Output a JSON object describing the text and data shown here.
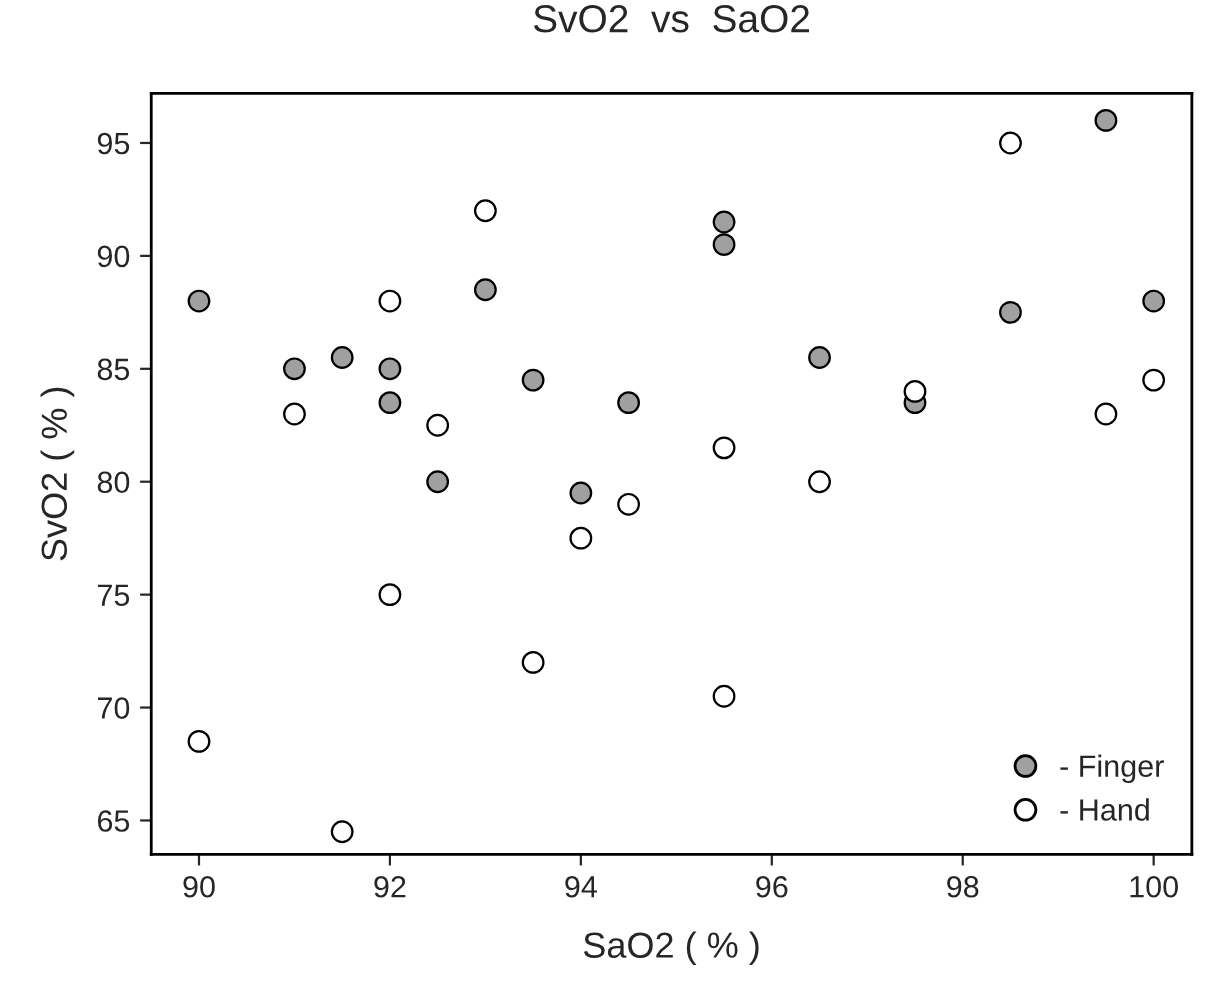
{
  "chart_data": {
    "type": "scatter",
    "title": "SvO2  vs  SaO2",
    "xlabel": "SaO2 ( % )",
    "ylabel": "SvO2 ( % )",
    "xlim": [
      89.5,
      100.4
    ],
    "ylim": [
      63.5,
      97.2
    ],
    "xticks": [
      90,
      92,
      94,
      96,
      98,
      100
    ],
    "yticks": [
      65,
      70,
      75,
      80,
      85,
      90,
      95
    ],
    "grid": false,
    "legend": "bottom right",
    "marker": "circle",
    "series": [
      {
        "name": "- Finger",
        "color": "#a0a0a0",
        "x": [
          90,
          91,
          91.5,
          92,
          92,
          92.5,
          93,
          93.5,
          94,
          94.5,
          95.5,
          95.5,
          96.5,
          97.5,
          98.5,
          99.5,
          100
        ],
        "values": [
          88,
          85,
          85.5,
          85,
          83.5,
          80,
          88.5,
          84.5,
          79.5,
          83.5,
          91.5,
          90.5,
          85.5,
          83.5,
          87.5,
          96,
          88
        ]
      },
      {
        "name": "- Hand",
        "color": "#ffffff",
        "x": [
          90,
          91,
          91.5,
          92,
          92,
          92.5,
          93,
          93.5,
          94,
          94.5,
          95.5,
          95.5,
          96.5,
          97.5,
          98.5,
          99.5,
          100
        ],
        "values": [
          68.5,
          83,
          64.5,
          88,
          75,
          82.5,
          92,
          72,
          77.5,
          79,
          81.5,
          70.5,
          80,
          84,
          95,
          83,
          84.5
        ]
      }
    ]
  }
}
